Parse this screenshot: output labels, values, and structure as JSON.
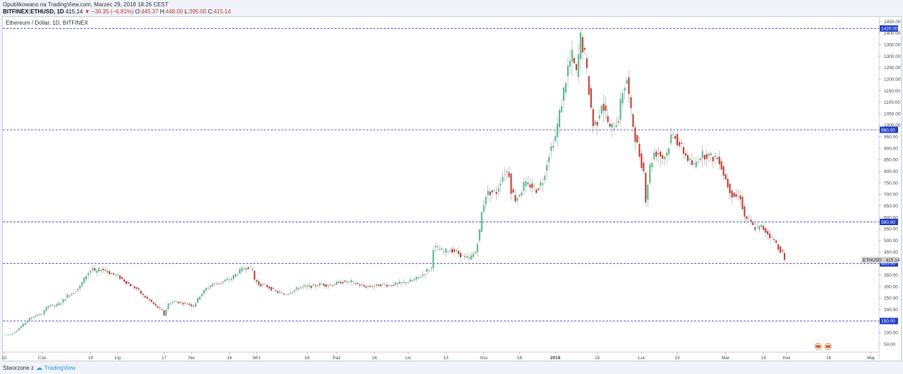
{
  "header": {
    "published": "Opublikowano na TradingView.com, Marzec 29, 2018 18:26 CEST",
    "symbol": "BITFINEX:ETHUSD, 1D",
    "last": "415.14",
    "change": "−30.35 (−6.81%)",
    "o_label": "O:",
    "o": "445.37",
    "h_label": "H:",
    "h": "448.00",
    "l_label": "L:",
    "l": "395.00",
    "c_label": "C:",
    "c": "415.14"
  },
  "legend": "Ethereum / Dollar, 1D, BITFINEX",
  "footer": {
    "created": "Stworzone z",
    "brand": "TradingView"
  },
  "colors": {
    "up": "#53b987",
    "down": "#c0392b",
    "level": "#3333cc",
    "badge_bg": "#1f3fc7",
    "price_badge": "#d4d4d4"
  },
  "chart_data": {
    "type": "candlestick",
    "title": "Ethereum / Dollar, 1D, BITFINEX",
    "ylim": [
      15,
      1470
    ],
    "y_ticks": [
      "1450.00",
      "1400.00",
      "1350.00",
      "1300.00",
      "1250.00",
      "1200.00",
      "1150.00",
      "1100.00",
      "1050.00",
      "1000.00",
      "950.00",
      "900.00",
      "850.00",
      "800.00",
      "750.00",
      "700.00",
      "650.00",
      "600.00",
      "550.00",
      "500.00",
      "450.00",
      "400.00",
      "350.00",
      "300.00",
      "250.00",
      "200.00",
      "150.00",
      "100.00",
      "50.00"
    ],
    "x_ticks": [
      "15",
      "Cze",
      "19",
      "Lip",
      "17",
      "Sie",
      "14",
      "Wrz",
      "18",
      "Paź",
      "16",
      "Lis",
      "13",
      "Gru",
      "18",
      "2018",
      "15",
      "Lut",
      "13",
      "Mar",
      "19",
      "Kwi",
      "16",
      "Maj"
    ],
    "horizontal_levels": [
      {
        "value": 1420,
        "label": "1420.00"
      },
      {
        "value": 980,
        "label": "980.00"
      },
      {
        "value": 580,
        "label": "580.00"
      },
      {
        "value": 400,
        "label": "400.00"
      },
      {
        "value": 150,
        "label": "150.00"
      }
    ],
    "last_price": {
      "symbol": "ETHUSD",
      "value": 415.14,
      "label": "415.14"
    },
    "series_close": [
      [
        0,
        90
      ],
      [
        3,
        92
      ],
      [
        6,
        110
      ],
      [
        9,
        135
      ],
      [
        12,
        160
      ],
      [
        15,
        175
      ],
      [
        18,
        180
      ],
      [
        21,
        220
      ],
      [
        24,
        215
      ],
      [
        27,
        230
      ],
      [
        30,
        260
      ],
      [
        33,
        275
      ],
      [
        36,
        300
      ],
      [
        39,
        350
      ],
      [
        42,
        380
      ],
      [
        43,
        360
      ],
      [
        46,
        375
      ],
      [
        48,
        370
      ],
      [
        51,
        355
      ],
      [
        54,
        345
      ],
      [
        57,
        325
      ],
      [
        60,
        305
      ],
      [
        63,
        290
      ],
      [
        66,
        260
      ],
      [
        69,
        240
      ],
      [
        72,
        215
      ],
      [
        75,
        195
      ],
      [
        76,
        175
      ],
      [
        78,
        225
      ],
      [
        81,
        235
      ],
      [
        84,
        230
      ],
      [
        87,
        225
      ],
      [
        90,
        215
      ],
      [
        93,
        260
      ],
      [
        96,
        290
      ],
      [
        99,
        310
      ],
      [
        102,
        315
      ],
      [
        105,
        325
      ],
      [
        108,
        335
      ],
      [
        111,
        360
      ],
      [
        114,
        380
      ],
      [
        116,
        385
      ],
      [
        118,
        370
      ],
      [
        119,
        330
      ],
      [
        121,
        310
      ],
      [
        124,
        305
      ],
      [
        127,
        290
      ],
      [
        130,
        275
      ],
      [
        133,
        265
      ],
      [
        136,
        275
      ],
      [
        139,
        290
      ],
      [
        142,
        300
      ],
      [
        145,
        300
      ],
      [
        148,
        305
      ],
      [
        151,
        310
      ],
      [
        154,
        305
      ],
      [
        157,
        310
      ],
      [
        160,
        320
      ],
      [
        162,
        320
      ],
      [
        165,
        320
      ],
      [
        168,
        310
      ],
      [
        171,
        300
      ],
      [
        174,
        300
      ],
      [
        177,
        305
      ],
      [
        180,
        310
      ],
      [
        183,
        305
      ],
      [
        186,
        310
      ],
      [
        189,
        315
      ],
      [
        192,
        320
      ],
      [
        195,
        330
      ],
      [
        198,
        345
      ],
      [
        201,
        370
      ],
      [
        203,
        380
      ],
      [
        204,
        470
      ],
      [
        206,
        465
      ],
      [
        209,
        450
      ],
      [
        212,
        460
      ],
      [
        215,
        450
      ],
      [
        218,
        430
      ],
      [
        221,
        420
      ],
      [
        224,
        450
      ],
      [
        226,
        540
      ],
      [
        227,
        620
      ],
      [
        229,
        700
      ],
      [
        231,
        710
      ],
      [
        234,
        710
      ],
      [
        236,
        760
      ],
      [
        238,
        800
      ],
      [
        240,
        790
      ],
      [
        241,
        720
      ],
      [
        243,
        680
      ],
      [
        245,
        700
      ],
      [
        247,
        740
      ],
      [
        250,
        740
      ],
      [
        253,
        720
      ],
      [
        256,
        760
      ],
      [
        259,
        880
      ],
      [
        262,
        950
      ],
      [
        264,
        1050
      ],
      [
        266,
        1150
      ],
      [
        268,
        1250
      ],
      [
        270,
        1300
      ],
      [
        272,
        1220
      ],
      [
        274,
        1380
      ],
      [
        276,
        1300
      ],
      [
        278,
        1150
      ],
      [
        280,
        1000
      ],
      [
        282,
        1020
      ],
      [
        284,
        1100
      ],
      [
        286,
        1050
      ],
      [
        288,
        980
      ],
      [
        290,
        1000
      ],
      [
        292,
        1030
      ],
      [
        294,
        1150
      ],
      [
        296,
        1200
      ],
      [
        298,
        1050
      ],
      [
        300,
        950
      ],
      [
        302,
        870
      ],
      [
        304,
        800
      ],
      [
        305,
        680
      ],
      [
        307,
        820
      ],
      [
        309,
        880
      ],
      [
        311,
        880
      ],
      [
        313,
        860
      ],
      [
        315,
        880
      ],
      [
        317,
        950
      ],
      [
        319,
        960
      ],
      [
        320,
        930
      ],
      [
        322,
        900
      ],
      [
        324,
        870
      ],
      [
        326,
        840
      ],
      [
        328,
        820
      ],
      [
        330,
        860
      ],
      [
        332,
        870
      ],
      [
        334,
        875
      ],
      [
        336,
        860
      ],
      [
        338,
        860
      ],
      [
        340,
        850
      ],
      [
        342,
        790
      ],
      [
        344,
        740
      ],
      [
        346,
        700
      ],
      [
        348,
        690
      ],
      [
        350,
        690
      ],
      [
        352,
        600
      ],
      [
        354,
        590
      ],
      [
        356,
        560
      ],
      [
        358,
        550
      ],
      [
        360,
        560
      ],
      [
        362,
        540
      ],
      [
        364,
        520
      ],
      [
        366,
        500
      ],
      [
        368,
        470
      ],
      [
        370,
        445
      ],
      [
        371,
        415
      ]
    ]
  }
}
